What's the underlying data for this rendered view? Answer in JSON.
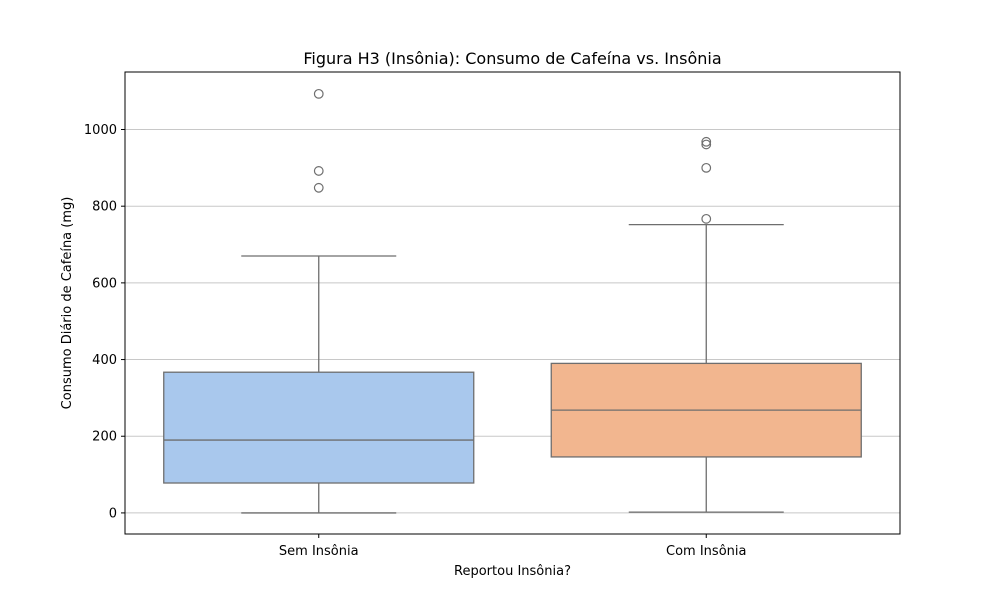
{
  "chart_data": {
    "type": "box",
    "title": "Figura H3 (Insônia): Consumo de Cafeína vs. Insônia",
    "xlabel": "Reportou Insônia?",
    "ylabel": "Consumo Diário de Cafeína (mg)",
    "categories": [
      "Sem Insônia",
      "Com Insônia"
    ],
    "ylim": [
      -55,
      1150
    ],
    "yticks": [
      0,
      200,
      400,
      600,
      800,
      1000
    ],
    "grid": "horizontal",
    "legend": "none",
    "boxes": [
      {
        "name": "Sem Insônia",
        "color": "#a9c8ed",
        "whisker_low": 0,
        "q1": 78,
        "median": 190,
        "q3": 367,
        "whisker_high": 670,
        "outliers": [
          848,
          892,
          1093
        ]
      },
      {
        "name": "Com Insônia",
        "color": "#f2b68f",
        "whisker_low": 2,
        "q1": 146,
        "median": 268,
        "q3": 390,
        "whisker_high": 752,
        "outliers": [
          767,
          900,
          961,
          968
        ]
      }
    ]
  }
}
